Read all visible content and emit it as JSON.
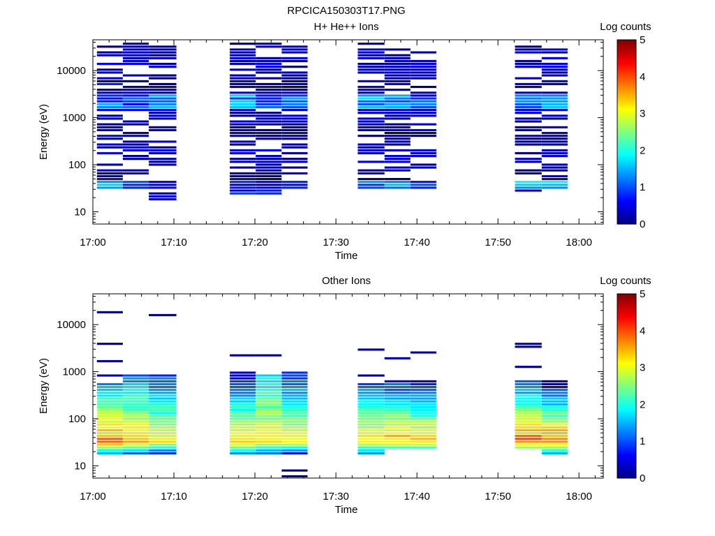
{
  "figure_title": "RPCICA150303T17.PNG",
  "chart_data": [
    {
      "type": "heatmap",
      "title": "H+ He++ Ions",
      "xlabel": "Time",
      "ylabel": "Energy (eV)",
      "x_ticks": [
        "17:00",
        "17:10",
        "17:20",
        "17:30",
        "17:40",
        "17:50",
        "18:00"
      ],
      "x_range_minutes_after_17_00": [
        0,
        63
      ],
      "y_scale": "log",
      "y_range": [
        5.5,
        45000
      ],
      "y_ticks": [
        10,
        100,
        1000,
        10000
      ],
      "y_tick_labels": [
        "10",
        "100",
        "1000",
        "10000"
      ],
      "colorbar": {
        "label": "Log counts",
        "range": [
          0,
          5
        ],
        "ticks": [
          "0",
          "1",
          "2",
          "3",
          "4",
          "5"
        ]
      },
      "columns": [
        {
          "t_start": 0.5,
          "t_end": 3.7,
          "e_min": 28,
          "e_max": 40000,
          "fill": 0.55,
          "low_band": [
            28,
            45,
            1.8
          ],
          "mid_band": [
            1500,
            3200,
            1.6
          ],
          "base": 0.8
        },
        {
          "t_start": 3.7,
          "t_end": 6.9,
          "e_min": 28,
          "e_max": 40000,
          "fill": 0.6,
          "low_band": [
            28,
            45,
            1.2
          ],
          "mid_band": [
            1500,
            3200,
            1.4
          ],
          "base": 0.6
        },
        {
          "t_start": 6.9,
          "t_end": 10.3,
          "e_min": 16,
          "e_max": 40000,
          "fill": 0.75,
          "low_band": [
            28,
            45,
            1.0
          ],
          "mid_band": [
            1500,
            3200,
            1.8
          ],
          "base": 0.6
        },
        {
          "t_start": 16.9,
          "t_end": 20.1,
          "e_min": 22,
          "e_max": 40000,
          "fill": 0.7,
          "low_band": [
            22,
            45,
            0.9
          ],
          "mid_band": [
            1500,
            3200,
            1.7
          ],
          "base": 0.6
        },
        {
          "t_start": 20.1,
          "t_end": 23.3,
          "e_min": 22,
          "e_max": 40000,
          "fill": 0.75,
          "low_band": [
            22,
            45,
            0.8
          ],
          "mid_band": [
            1500,
            3200,
            1.6
          ],
          "base": 0.6
        },
        {
          "t_start": 23.3,
          "t_end": 26.5,
          "e_min": 28,
          "e_max": 40000,
          "fill": 0.75,
          "low_band": [
            28,
            45,
            1.0
          ],
          "mid_band": [
            1500,
            3200,
            1.5
          ],
          "base": 0.6
        },
        {
          "t_start": 32.7,
          "t_end": 36.0,
          "e_min": 28,
          "e_max": 40000,
          "fill": 0.7,
          "low_band": [
            28,
            45,
            1.4
          ],
          "mid_band": [
            1500,
            3200,
            1.8
          ],
          "base": 0.6
        },
        {
          "t_start": 36.0,
          "t_end": 39.2,
          "e_min": 28,
          "e_max": 35000,
          "fill": 0.7,
          "low_band": [
            28,
            45,
            1.6
          ],
          "mid_band": [
            1500,
            3200,
            1.8
          ],
          "base": 0.6
        },
        {
          "t_start": 39.2,
          "t_end": 42.4,
          "e_min": 28,
          "e_max": 30000,
          "fill": 0.65,
          "low_band": [
            28,
            45,
            1.3
          ],
          "mid_band": [
            1500,
            3200,
            1.3
          ],
          "base": 0.6
        },
        {
          "t_start": 52.1,
          "t_end": 55.4,
          "e_min": 22,
          "e_max": 32000,
          "fill": 0.55,
          "low_band": [
            28,
            45,
            1.9
          ],
          "mid_band": [
            1500,
            3200,
            1.7
          ],
          "base": 0.6
        },
        {
          "t_start": 55.4,
          "t_end": 58.6,
          "e_min": 28,
          "e_max": 30000,
          "fill": 0.55,
          "low_band": [
            28,
            45,
            1.9
          ],
          "mid_band": [
            1500,
            3200,
            1.8
          ],
          "base": 0.6
        }
      ]
    },
    {
      "type": "heatmap",
      "title": "Other Ions",
      "xlabel": "Time",
      "ylabel": "Energy (eV)",
      "x_ticks": [
        "17:00",
        "17:10",
        "17:20",
        "17:30",
        "17:40",
        "17:50",
        "18:00"
      ],
      "x_range_minutes_after_17_00": [
        0,
        63
      ],
      "y_scale": "log",
      "y_range": [
        5.5,
        45000
      ],
      "y_ticks": [
        10,
        100,
        1000,
        10000
      ],
      "y_tick_labels": [
        "10",
        "100",
        "1000",
        "10000"
      ],
      "colorbar": {
        "label": "Log counts",
        "range": [
          0,
          5
        ],
        "ticks": [
          "0",
          "1",
          "2",
          "3",
          "4",
          "5"
        ]
      },
      "columns": [
        {
          "t_start": 0.5,
          "t_end": 3.7,
          "e_min": 16,
          "e_max": 560,
          "peak_e": 32,
          "peak_v": 3.9,
          "top_v": 1.3,
          "floor_v": 0.9,
          "sparse": [
            [
              17000,
              0.1
            ],
            [
              3600,
              0.15
            ],
            [
              1650,
              0.2
            ],
            [
              800,
              0.3
            ]
          ]
        },
        {
          "t_start": 3.7,
          "t_end": 6.9,
          "e_min": 16,
          "e_max": 820,
          "peak_e": 32,
          "peak_v": 3.5,
          "top_v": 1.2,
          "floor_v": 0.6,
          "sparse": []
        },
        {
          "t_start": 6.9,
          "t_end": 10.3,
          "e_min": 16,
          "e_max": 820,
          "peak_e": 32,
          "peak_v": 3.2,
          "top_v": 0.9,
          "floor_v": 0.2,
          "sparse": [
            [
              15000,
              0.1
            ]
          ]
        },
        {
          "t_start": 16.9,
          "t_end": 20.1,
          "e_min": 16,
          "e_max": 1000,
          "peak_e": 32,
          "peak_v": 3.4,
          "top_v": 0.4,
          "floor_v": 0.8,
          "sparse": [
            [
              2300,
              0.15
            ]
          ]
        },
        {
          "t_start": 20.1,
          "t_end": 23.3,
          "e_min": 16,
          "e_max": 900,
          "peak_e": 32,
          "peak_v": 3.2,
          "top_v": 1.6,
          "floor_v": 0.6,
          "sparse": [
            [
              2100,
              0.15
            ]
          ]
        },
        {
          "t_start": 23.3,
          "t_end": 26.5,
          "e_min": 16,
          "e_max": 1000,
          "peak_e": 32,
          "peak_v": 3.3,
          "top_v": 0.6,
          "floor_v": 0.2,
          "sparse": [
            [
              6.2,
              0.05
            ],
            [
              8.3,
              0.05
            ]
          ]
        },
        {
          "t_start": 32.7,
          "t_end": 36.0,
          "e_min": 16,
          "e_max": 580,
          "peak_e": 34,
          "peak_v": 3.4,
          "top_v": 0.9,
          "floor_v": 0.8,
          "sparse": [
            [
              2700,
              0.15
            ],
            [
              820,
              0.2
            ]
          ]
        },
        {
          "t_start": 36.0,
          "t_end": 39.2,
          "e_min": 22,
          "e_max": 650,
          "peak_e": 34,
          "peak_v": 3.5,
          "top_v": 0.8,
          "floor_v": 2.0,
          "sparse": [
            [
              2000,
              0.3
            ]
          ]
        },
        {
          "t_start": 39.2,
          "t_end": 42.4,
          "e_min": 22,
          "e_max": 620,
          "peak_e": 34,
          "peak_v": 3.5,
          "top_v": 0.5,
          "floor_v": 2.0,
          "sparse": [
            [
              2400,
              0.2
            ]
          ]
        },
        {
          "t_start": 52.1,
          "t_end": 55.4,
          "e_min": 22,
          "e_max": 650,
          "peak_e": 34,
          "peak_v": 3.9,
          "top_v": 1.0,
          "floor_v": 2.2,
          "sparse": [
            [
              3800,
              0.4
            ],
            [
              3300,
              0.2
            ],
            [
              1250,
              0.2
            ]
          ]
        },
        {
          "t_start": 55.4,
          "t_end": 58.6,
          "e_min": 16,
          "e_max": 650,
          "peak_e": 34,
          "peak_v": 3.9,
          "top_v": 0.3,
          "floor_v": 0.9,
          "sparse": []
        }
      ]
    }
  ]
}
